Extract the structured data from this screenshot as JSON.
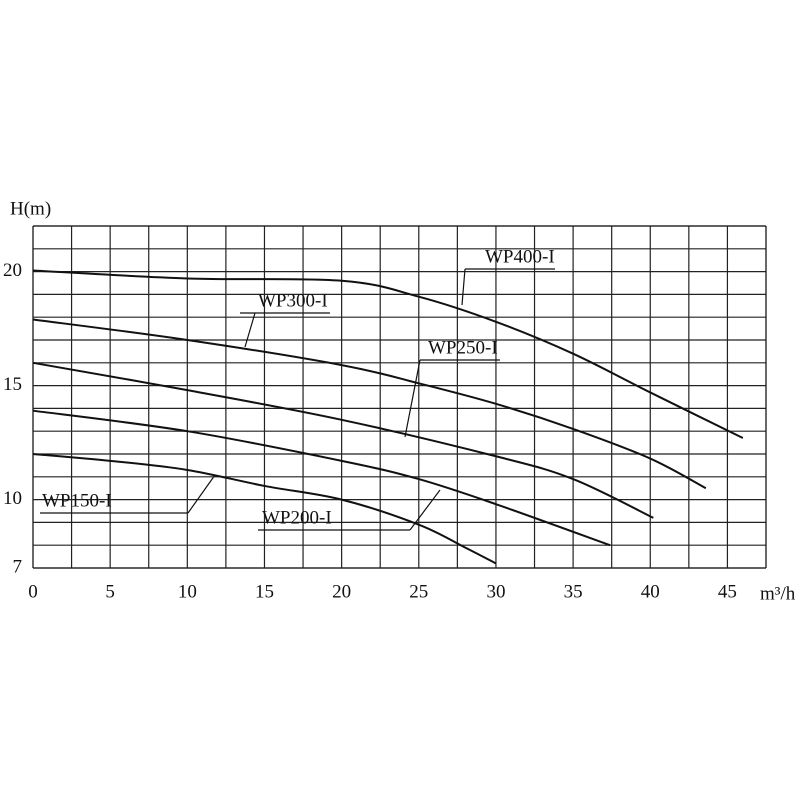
{
  "chart_data": {
    "type": "line",
    "x_label": "m³/h",
    "y_label": "H(m)",
    "xlim": [
      0,
      47.5
    ],
    "ylim": [
      7,
      22
    ],
    "xticks": [
      0,
      5,
      10,
      15,
      20,
      25,
      30,
      35,
      40,
      45
    ],
    "yticks": [
      7,
      10,
      15,
      20
    ],
    "grid": true,
    "series": [
      {
        "name": "WP400-I",
        "color": "#111111",
        "x": [
          0,
          10,
          20,
          25,
          30,
          35,
          40,
          46
        ],
        "values": [
          20.05,
          19.7,
          19.6,
          18.9,
          17.8,
          16.4,
          14.7,
          12.7
        ]
      },
      {
        "name": "WP300-I",
        "color": "#111111",
        "x": [
          0,
          10,
          20,
          25,
          30,
          35,
          40,
          43.6
        ],
        "values": [
          17.9,
          17.0,
          15.9,
          15.1,
          14.2,
          13.1,
          11.8,
          10.5
        ]
      },
      {
        "name": "WP250-I",
        "color": "#111111",
        "x": [
          0,
          10,
          20,
          30,
          35,
          40.2
        ],
        "values": [
          16.0,
          14.8,
          13.5,
          11.9,
          10.9,
          9.2
        ]
      },
      {
        "name": "WP200-I",
        "color": "#111111",
        "x": [
          0,
          10,
          20,
          25,
          30,
          37.4
        ],
        "values": [
          13.9,
          13.0,
          11.7,
          10.9,
          9.8,
          8.0
        ]
      },
      {
        "name": "WP150-I",
        "color": "#111111",
        "x": [
          0,
          5,
          10,
          15,
          20,
          25,
          28,
          30
        ],
        "values": [
          12.0,
          11.7,
          11.3,
          10.6,
          10.0,
          8.9,
          7.9,
          7.2
        ]
      }
    ]
  }
}
